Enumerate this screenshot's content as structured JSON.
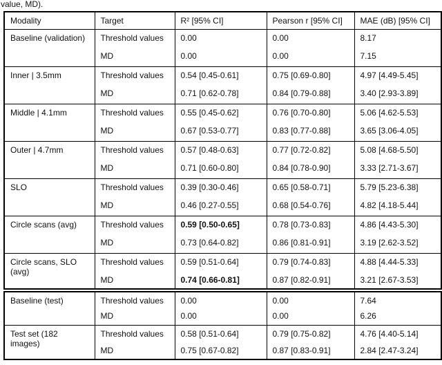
{
  "caption_fragment": "value, MD).",
  "table": {
    "headers": {
      "modality": "Modality",
      "target": "Target",
      "r2": "R² [95% CI]",
      "pearson": "Pearson r [95% CI]",
      "mae": "MAE (dB) [95% CI]"
    },
    "groups": [
      {
        "modality": "Baseline (validation)",
        "rows": [
          {
            "target": "Threshold values",
            "r2": "0.00",
            "pearson": "0.00",
            "mae": "8.17",
            "r2_bold": false
          },
          {
            "target": "MD",
            "r2": "0.00",
            "pearson": "0.00",
            "mae": "7.15",
            "r2_bold": false
          }
        ]
      },
      {
        "modality": "Inner | 3.5mm",
        "rows": [
          {
            "target": "Threshold values",
            "r2": "0.54 [0.45-0.61]",
            "pearson": "0.75 [0.69-0.80]",
            "mae": "4.97 [4.49-5.45]",
            "r2_bold": false
          },
          {
            "target": "MD",
            "r2": "0.71 [0.62-0.78]",
            "pearson": "0.84 [0.79-0.88]",
            "mae": "3.40 [2.93-3.89]",
            "r2_bold": false
          }
        ]
      },
      {
        "modality": "Middle | 4.1mm",
        "rows": [
          {
            "target": "Threshold values",
            "r2": "0.55 [0.45-0.62]",
            "pearson": "0.76 [0.70-0.80]",
            "mae": "5.06 [4.62-5.53]",
            "r2_bold": false
          },
          {
            "target": "MD",
            "r2": "0.67 [0.53-0.77]",
            "pearson": "0.83 [0.77-0.88]",
            "mae": "3.65 [3.06-4.05]",
            "r2_bold": false
          }
        ]
      },
      {
        "modality": "Outer | 4.7mm",
        "rows": [
          {
            "target": "Threshold values",
            "r2": "0.57 [0.48-0.63]",
            "pearson": "0.77 [0.72-0.82]",
            "mae": "5.08 [4.68-5.50]",
            "r2_bold": false
          },
          {
            "target": "MD",
            "r2": "0.71 [0.60-0.80]",
            "pearson": "0.84 [0.78-0.90]",
            "mae": "3.33 [2.71-3.67]",
            "r2_bold": false
          }
        ]
      },
      {
        "modality": "SLO",
        "rows": [
          {
            "target": "Threshold values",
            "r2": "0.39 [0.30-0.46]",
            "pearson": "0.65 [0.58-0.71]",
            "mae": "5.79 [5.23-6.38]",
            "r2_bold": false
          },
          {
            "target": "MD",
            "r2": "0.46 [0.27-0.55]",
            "pearson": "0.68 [0.54-0.76]",
            "mae": "4.82 [4.18-5.44]",
            "r2_bold": false
          }
        ]
      },
      {
        "modality": "Circle scans (avg)",
        "rows": [
          {
            "target": "Threshold values",
            "r2": "0.59 [0.50-0.65]",
            "pearson": "0.78 [0.73-0.83]",
            "mae": "4.86 [4.43-5.30]",
            "r2_bold": true
          },
          {
            "target": "MD",
            "r2": "0.73 [0.64-0.82]",
            "pearson": "0.86 [0.81-0.91]",
            "mae": "3.19 [2.62-3.52]",
            "r2_bold": false
          }
        ]
      },
      {
        "modality": "Circle scans, SLO\n(avg)",
        "rows": [
          {
            "target": "Threshold values",
            "r2": "0.59 [0.51-0.64]",
            "pearson": "0.79 [0.74-0.83]",
            "mae": "4.88 [4.44-5.33]",
            "r2_bold": false
          },
          {
            "target": "MD",
            "r2": "0.74 [0.66-0.81]",
            "pearson": "0.87 [0.82-0.91]",
            "mae": "3.21 [2.67-3.53]",
            "r2_bold": true
          }
        ]
      },
      {
        "modality": "Baseline (test)",
        "rows": [
          {
            "target": "Threshold values",
            "r2": "0.00",
            "pearson": "0.00",
            "mae": "7.64",
            "r2_bold": false
          },
          {
            "target": "MD",
            "r2": "0.00",
            "pearson": "0.00",
            "mae": "6.26",
            "r2_bold": false
          }
        ]
      },
      {
        "modality": "Test set (182\nimages)",
        "rows": [
          {
            "target": "Threshold values",
            "r2": "0.58 [0.51-0.64]",
            "pearson": "0.79 [0.75-0.82]",
            "mae": "4.76 [4.40-5.14]",
            "r2_bold": false
          },
          {
            "target": "MD",
            "r2": "0.75 [0.67-0.82]",
            "pearson": "0.87 [0.83-0.91]",
            "mae": "2.84 [2.47-3.24]",
            "r2_bold": false
          }
        ]
      }
    ]
  }
}
